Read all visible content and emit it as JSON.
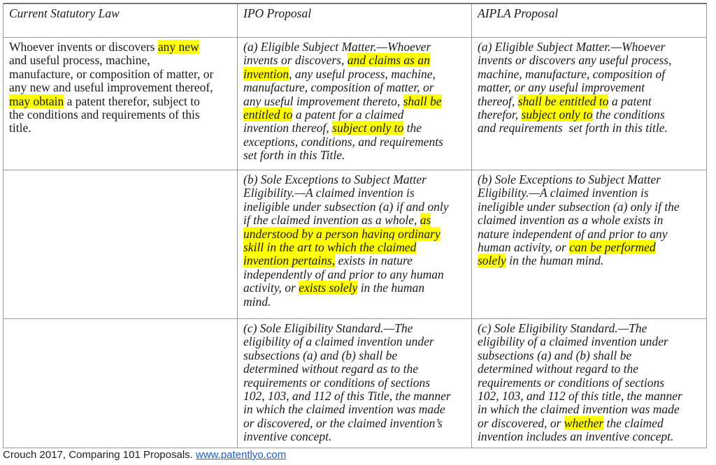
{
  "table": {
    "headers": [
      "Current Statutory Law",
      "IPO Proposal",
      "AIPLA Proposal"
    ],
    "rows": [
      [
        [
          {
            "t": "Whoever invents or discovers "
          },
          {
            "t": "any new",
            "hl": true
          },
          {
            "t": "\nand useful process, machine,\nmanufacture, or composition of matter, or\nany new and useful improvement thereof,\n"
          },
          {
            "t": "may obtain",
            "hl": true
          },
          {
            "t": " a patent therefor, subject to\nthe conditions and requirements of this\ntitle."
          }
        ],
        [
          {
            "t": "(a) Eligible Subject Matter.—Whoever\ninvents or discovers, "
          },
          {
            "t": "and claims as an\ninvention",
            "hl": true
          },
          {
            "t": ", any useful process, machine,\nmanufacture, composition of matter, or\nany useful improvement thereto, "
          },
          {
            "t": "shall be\nentitled to",
            "hl": true
          },
          {
            "t": " a patent for a claimed\ninvention thereof, "
          },
          {
            "t": "subject only to",
            "hl": true
          },
          {
            "t": " the\nexceptions, conditions, and requirements\nset forth in this Title."
          }
        ],
        [
          {
            "t": "(a) Eligible Subject Matter.—Whoever\ninvents or discovers any useful process,\nmachine, manufacture, composition of\nmatter, or any useful improvement\nthereof, "
          },
          {
            "t": "shall be entitled to",
            "hl": true
          },
          {
            "t": " a patent\ntherefor, "
          },
          {
            "t": "subject only to",
            "hl": true
          },
          {
            "t": " the conditions\nand requirements  set forth in this title."
          }
        ]
      ],
      [
        [],
        [
          {
            "t": "(b) Sole Exceptions to Subject Matter\nEligibility.—A claimed invention is\nineligible under subsection (a) if and only\nif the claimed invention as a whole, "
          },
          {
            "t": "as\nunderstood by a person having ordinary\nskill in the art to which the claimed\ninvention pertains,",
            "hl": true
          },
          {
            "t": " exists in nature\nindependently of and prior to any human\nactivity, or "
          },
          {
            "t": "exists solely",
            "hl": true
          },
          {
            "t": " in the human\nmind."
          }
        ],
        [
          {
            "t": "(b) Sole Exceptions to Subject Matter\nEligibility.—A claimed invention is\nineligible under subsection (a) only if the\nclaimed invention as a whole exists in\nnature independent of and prior to any\nhuman activity, or "
          },
          {
            "t": "can be performed\nsolely",
            "hl": true
          },
          {
            "t": " in the human mind."
          }
        ]
      ],
      [
        [],
        [
          {
            "t": "(c) Sole Eligibility Standard.—The\neligibility of a claimed invention under\nsubsections (a) and (b) shall be\ndetermined without regard as to the\nrequirements or conditions of sections\n102, 103, and 112 of this Title, the manner\nin which the claimed invention was made\nor discovered, or the claimed invention’s\ninventive concept."
          }
        ],
        [
          {
            "t": "(c) Sole Eligibility Standard.—The\neligibility of a claimed invention under\nsubsections (a) and (b) shall be\ndetermined without regard to the\nrequirements or conditions of sections\n102, 103, and 112 of this title, the manner\nin which the claimed invention was made\nor discovered, or "
          },
          {
            "t": "whether",
            "hl": true
          },
          {
            "t": " the claimed\ninvention includes an inventive concept."
          }
        ]
      ]
    ]
  },
  "highlight_color": "#ffff00",
  "footer": {
    "text": "Crouch 2017, Comparing 101 Proposals. ",
    "link": "www.patentlyo.com",
    "link_color": "#1a5dc8"
  }
}
